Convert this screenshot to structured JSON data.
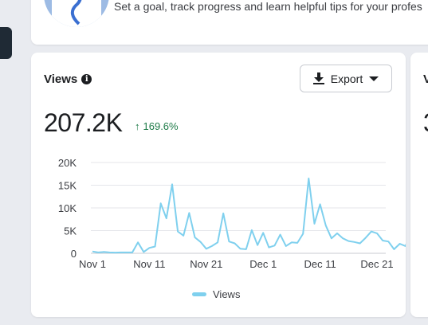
{
  "goal_banner": {
    "text": "Set a goal, track progress and learn helpful tips for your profes"
  },
  "views_card": {
    "title": "Views",
    "export_label": "Export",
    "total": "207.2K",
    "change": "169.6%",
    "legend_label": "Views"
  },
  "right_card": {
    "peek_title": "V",
    "peek_value": "3"
  },
  "colors": {
    "series": "#7fd0ee",
    "positive": "#1d7a47",
    "grid": "#e4e6ea"
  },
  "chart_data": {
    "type": "line",
    "title": "",
    "xlabel": "",
    "ylabel": "",
    "ylim": [
      0,
      20000
    ],
    "yticks": [
      "0",
      "5K",
      "10K",
      "15K",
      "20K"
    ],
    "xticks": [
      "Nov 1",
      "Nov 11",
      "Nov 21",
      "Dec 1",
      "Dec 11",
      "Dec 21"
    ],
    "legend": "bottom-center",
    "grid": true,
    "series": [
      {
        "name": "Views",
        "values": [
          400,
          200,
          300,
          200,
          150,
          200,
          200,
          200,
          2400,
          300,
          1200,
          1500,
          11000,
          7700,
          15200,
          4800,
          3900,
          8900,
          3500,
          2500,
          1000,
          1600,
          2400,
          8800,
          2600,
          2200,
          1000,
          900,
          5100,
          1800,
          4500,
          1300,
          1700,
          4100,
          1600,
          2400,
          2300,
          4300,
          16500,
          6500,
          10800,
          6100,
          3300,
          4400,
          3300,
          2700,
          2500,
          2200,
          3400,
          4800,
          4400,
          2800,
          2600,
          900,
          2100,
          1600,
          4500,
          3500
        ]
      }
    ]
  }
}
